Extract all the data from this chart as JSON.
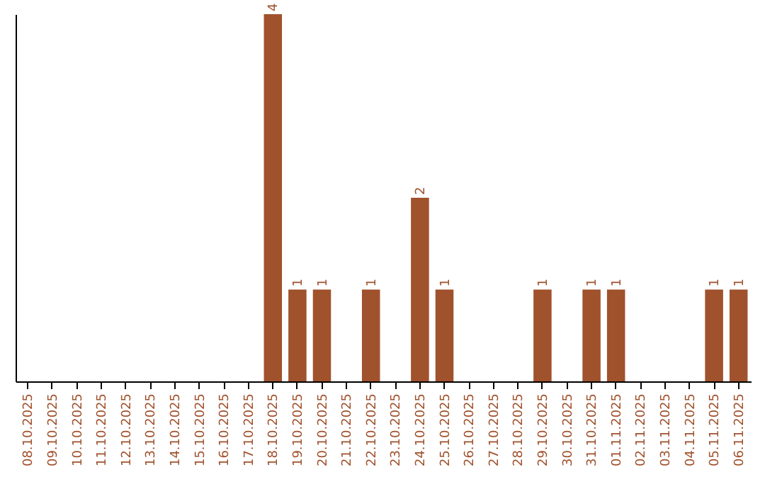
{
  "chart_data": {
    "type": "bar",
    "categories": [
      "08.10.2025",
      "09.10.2025",
      "10.10.2025",
      "11.10.2025",
      "12.10.2025",
      "13.10.2025",
      "14.10.2025",
      "15.10.2025",
      "16.10.2025",
      "17.10.2025",
      "18.10.2025",
      "19.10.2025",
      "20.10.2025",
      "21.10.2025",
      "22.10.2025",
      "23.10.2025",
      "24.10.2025",
      "25.10.2025",
      "26.10.2025",
      "27.10.2025",
      "28.10.2025",
      "29.10.2025",
      "30.10.2025",
      "31.10.2025",
      "01.11.2025",
      "02.11.2025",
      "03.11.2025",
      "04.11.2025",
      "05.11.2025",
      "06.11.2025"
    ],
    "values": [
      0,
      0,
      0,
      0,
      0,
      0,
      0,
      0,
      0,
      0,
      4,
      1,
      1,
      0,
      1,
      0,
      2,
      1,
      0,
      0,
      0,
      1,
      0,
      1,
      1,
      0,
      0,
      0,
      1,
      1
    ],
    "value_labels": [
      null,
      null,
      null,
      null,
      null,
      null,
      null,
      null,
      null,
      null,
      "4",
      "1",
      "1",
      null,
      "1",
      null,
      "2",
      "1",
      null,
      null,
      null,
      "1",
      null,
      "1",
      "1",
      null,
      null,
      null,
      "1",
      "1"
    ],
    "color": "#a0522d",
    "tick_labels": "x"
  }
}
